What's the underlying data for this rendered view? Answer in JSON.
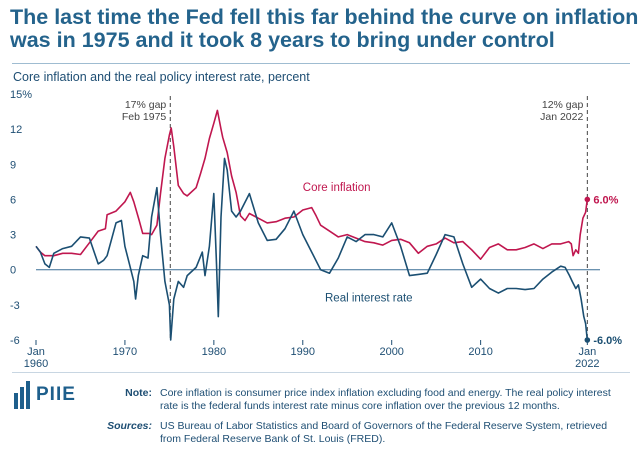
{
  "header": {
    "title_line1": "The last time the Fed fell this far behind the curve on inflation",
    "title_line2": "was in 1975 and it took 8 years to bring under control",
    "subtitle": "Core inflation and the real policy interest rate, percent"
  },
  "chart_data": {
    "type": "line",
    "title": "Core inflation and the real policy interest rate, percent",
    "xlim": [
      1960,
      2022.3
    ],
    "ylim": [
      -6,
      15
    ],
    "y_ticks": [
      {
        "value": 15,
        "label": "15%"
      },
      {
        "value": 12,
        "label": "12"
      },
      {
        "value": 9,
        "label": "9"
      },
      {
        "value": 6,
        "label": "6"
      },
      {
        "value": 3,
        "label": "3"
      },
      {
        "value": 0,
        "label": "0"
      },
      {
        "value": -3,
        "label": "-3"
      },
      {
        "value": -6,
        "label": "-6"
      }
    ],
    "x_ticks": [
      {
        "value": 1960,
        "label": "Jan",
        "label2": "1960"
      },
      {
        "value": 1970,
        "label": "1970",
        "label2": ""
      },
      {
        "value": 1980,
        "label": "1980",
        "label2": ""
      },
      {
        "value": 1990,
        "label": "1990",
        "label2": ""
      },
      {
        "value": 2000,
        "label": "2000",
        "label2": ""
      },
      {
        "value": 2010,
        "label": "2010",
        "label2": ""
      },
      {
        "value": 2022,
        "label": "Jan",
        "label2": "2022"
      }
    ],
    "annotations": [
      {
        "x": 1975.1,
        "line1": "17% gap",
        "line2": "Feb 1975"
      },
      {
        "x": 2022.0,
        "line1": "12% gap",
        "line2": "Jan 2022"
      }
    ],
    "series": [
      {
        "name": "Core inflation",
        "label": "Core inflation",
        "color": "#c0174f",
        "end_label": "6.0%",
        "label_at": [
          1990,
          6.7
        ],
        "points": [
          [
            1960,
            2.0
          ],
          [
            1960.5,
            1.5
          ],
          [
            1961,
            1.2
          ],
          [
            1962,
            1.2
          ],
          [
            1963,
            1.4
          ],
          [
            1964,
            1.4
          ],
          [
            1965,
            1.3
          ],
          [
            1966,
            2.3
          ],
          [
            1967,
            3.3
          ],
          [
            1967.8,
            3.5
          ],
          [
            1968,
            4.7
          ],
          [
            1969,
            5.0
          ],
          [
            1970,
            5.8
          ],
          [
            1970.6,
            6.6
          ],
          [
            1971,
            5.8
          ],
          [
            1971.6,
            4.2
          ],
          [
            1972,
            3.1
          ],
          [
            1972.7,
            3.1
          ],
          [
            1973,
            3.0
          ],
          [
            1973.6,
            3.8
          ],
          [
            1974,
            6.5
          ],
          [
            1974.5,
            9.5
          ],
          [
            1975.0,
            11.5
          ],
          [
            1975.2,
            12.1
          ],
          [
            1975.5,
            10.5
          ],
          [
            1976,
            7.2
          ],
          [
            1976.6,
            6.5
          ],
          [
            1977,
            6.3
          ],
          [
            1978,
            7.0
          ],
          [
            1978.5,
            8.2
          ],
          [
            1979,
            9.5
          ],
          [
            1979.5,
            11.2
          ],
          [
            1980,
            12.5
          ],
          [
            1980.4,
            13.6
          ],
          [
            1980.8,
            12.0
          ],
          [
            1981,
            11.3
          ],
          [
            1981.5,
            10.0
          ],
          [
            1982,
            8.0
          ],
          [
            1982.5,
            6.6
          ],
          [
            1983,
            4.6
          ],
          [
            1983.5,
            4.2
          ],
          [
            1984,
            4.8
          ],
          [
            1985,
            4.4
          ],
          [
            1986,
            4.0
          ],
          [
            1987,
            4.1
          ],
          [
            1988,
            4.4
          ],
          [
            1989,
            4.5
          ],
          [
            1990,
            5.1
          ],
          [
            1991,
            5.3
          ],
          [
            1991.5,
            4.6
          ],
          [
            1992,
            3.8
          ],
          [
            1993,
            3.3
          ],
          [
            1994,
            2.8
          ],
          [
            1995,
            3.0
          ],
          [
            1996,
            2.7
          ],
          [
            1997,
            2.4
          ],
          [
            1998,
            2.3
          ],
          [
            1999,
            2.1
          ],
          [
            2000,
            2.5
          ],
          [
            2001,
            2.6
          ],
          [
            2002,
            2.3
          ],
          [
            2003,
            1.4
          ],
          [
            2004,
            2.0
          ],
          [
            2005,
            2.2
          ],
          [
            2006,
            2.7
          ],
          [
            2007,
            2.3
          ],
          [
            2008,
            2.4
          ],
          [
            2009,
            1.7
          ],
          [
            2010,
            0.9
          ],
          [
            2011,
            1.9
          ],
          [
            2012,
            2.2
          ],
          [
            2013,
            1.7
          ],
          [
            2014,
            1.7
          ],
          [
            2015,
            1.9
          ],
          [
            2016,
            2.2
          ],
          [
            2017,
            1.8
          ],
          [
            2018,
            2.2
          ],
          [
            2019,
            2.2
          ],
          [
            2019.9,
            2.4
          ],
          [
            2020.2,
            2.2
          ],
          [
            2020.4,
            1.2
          ],
          [
            2020.7,
            1.7
          ],
          [
            2021,
            1.4
          ],
          [
            2021.2,
            3.0
          ],
          [
            2021.5,
            4.4
          ],
          [
            2021.8,
            4.9
          ],
          [
            2022.0,
            6.0
          ]
        ]
      },
      {
        "name": "Real interest rate",
        "label": "Real interest rate",
        "color": "#1b4f72",
        "end_label": "-6.0%",
        "label_at": [
          1992.5,
          -2.7
        ],
        "points": [
          [
            1960,
            2.0
          ],
          [
            1960.5,
            1.5
          ],
          [
            1961,
            0.5
          ],
          [
            1961.5,
            0.2
          ],
          [
            1962,
            1.4
          ],
          [
            1963,
            1.8
          ],
          [
            1964,
            2.0
          ],
          [
            1965,
            2.8
          ],
          [
            1966,
            2.7
          ],
          [
            1967,
            0.5
          ],
          [
            1967.6,
            0.8
          ],
          [
            1968,
            1.2
          ],
          [
            1969,
            4.0
          ],
          [
            1969.6,
            4.2
          ],
          [
            1970,
            2.0
          ],
          [
            1970.5,
            0.5
          ],
          [
            1971,
            -1.0
          ],
          [
            1971.2,
            -2.5
          ],
          [
            1971.5,
            -0.5
          ],
          [
            1972,
            1.2
          ],
          [
            1972.6,
            1.0
          ],
          [
            1973,
            4.5
          ],
          [
            1973.6,
            7.0
          ],
          [
            1974,
            3.0
          ],
          [
            1974.5,
            -1.0
          ],
          [
            1975.0,
            -3.0
          ],
          [
            1975.15,
            -6.0
          ],
          [
            1975.5,
            -2.5
          ],
          [
            1976,
            -1.0
          ],
          [
            1976.6,
            -1.5
          ],
          [
            1977,
            -0.5
          ],
          [
            1978,
            0.2
          ],
          [
            1978.7,
            1.5
          ],
          [
            1979,
            -0.5
          ],
          [
            1979.5,
            2.0
          ],
          [
            1980.0,
            6.5
          ],
          [
            1980.3,
            0.5
          ],
          [
            1980.5,
            -4.0
          ],
          [
            1980.8,
            4.5
          ],
          [
            1981.2,
            9.5
          ],
          [
            1981.5,
            8.5
          ],
          [
            1982,
            5.0
          ],
          [
            1982.5,
            4.5
          ],
          [
            1983,
            5.0
          ],
          [
            1984,
            6.5
          ],
          [
            1985,
            4.0
          ],
          [
            1986,
            2.5
          ],
          [
            1987,
            2.6
          ],
          [
            1988,
            3.5
          ],
          [
            1989,
            5.0
          ],
          [
            1990,
            3.0
          ],
          [
            1991,
            1.5
          ],
          [
            1992,
            0.0
          ],
          [
            1993,
            -0.3
          ],
          [
            1994,
            1.0
          ],
          [
            1995,
            2.8
          ],
          [
            1996,
            2.4
          ],
          [
            1997,
            3.0
          ],
          [
            1998,
            3.0
          ],
          [
            1999,
            2.8
          ],
          [
            2000,
            4.0
          ],
          [
            2001,
            2.0
          ],
          [
            2002,
            -0.5
          ],
          [
            2003,
            -0.4
          ],
          [
            2004,
            -0.3
          ],
          [
            2005,
            1.3
          ],
          [
            2006,
            3.0
          ],
          [
            2007,
            2.8
          ],
          [
            2008,
            0.5
          ],
          [
            2009,
            -1.5
          ],
          [
            2010,
            -0.8
          ],
          [
            2011,
            -1.6
          ],
          [
            2012,
            -2.0
          ],
          [
            2013,
            -1.6
          ],
          [
            2014,
            -1.6
          ],
          [
            2015,
            -1.7
          ],
          [
            2016,
            -1.6
          ],
          [
            2017,
            -0.8
          ],
          [
            2018,
            -0.2
          ],
          [
            2019,
            0.3
          ],
          [
            2019.5,
            0.2
          ],
          [
            2020,
            -0.5
          ],
          [
            2020.3,
            -1.0
          ],
          [
            2020.7,
            -1.6
          ],
          [
            2021,
            -1.3
          ],
          [
            2021.3,
            -2.5
          ],
          [
            2021.6,
            -4.0
          ],
          [
            2021.8,
            -4.6
          ],
          [
            2022.0,
            -6.0
          ]
        ]
      }
    ]
  },
  "footer": {
    "logo": "PIIE",
    "note_label": "Note:",
    "note_text": "Core inflation is consumer price index inflation excluding food and energy. The real policy interest rate is the federal funds interest rate minus core inflation over the previous 12 months.",
    "sources_label": "Sources:",
    "sources_text": "US Bureau of Labor Statistics and Board of Governors of the Federal Reserve System, retrieved from Federal Reserve Bank of St. Louis (FRED)."
  }
}
